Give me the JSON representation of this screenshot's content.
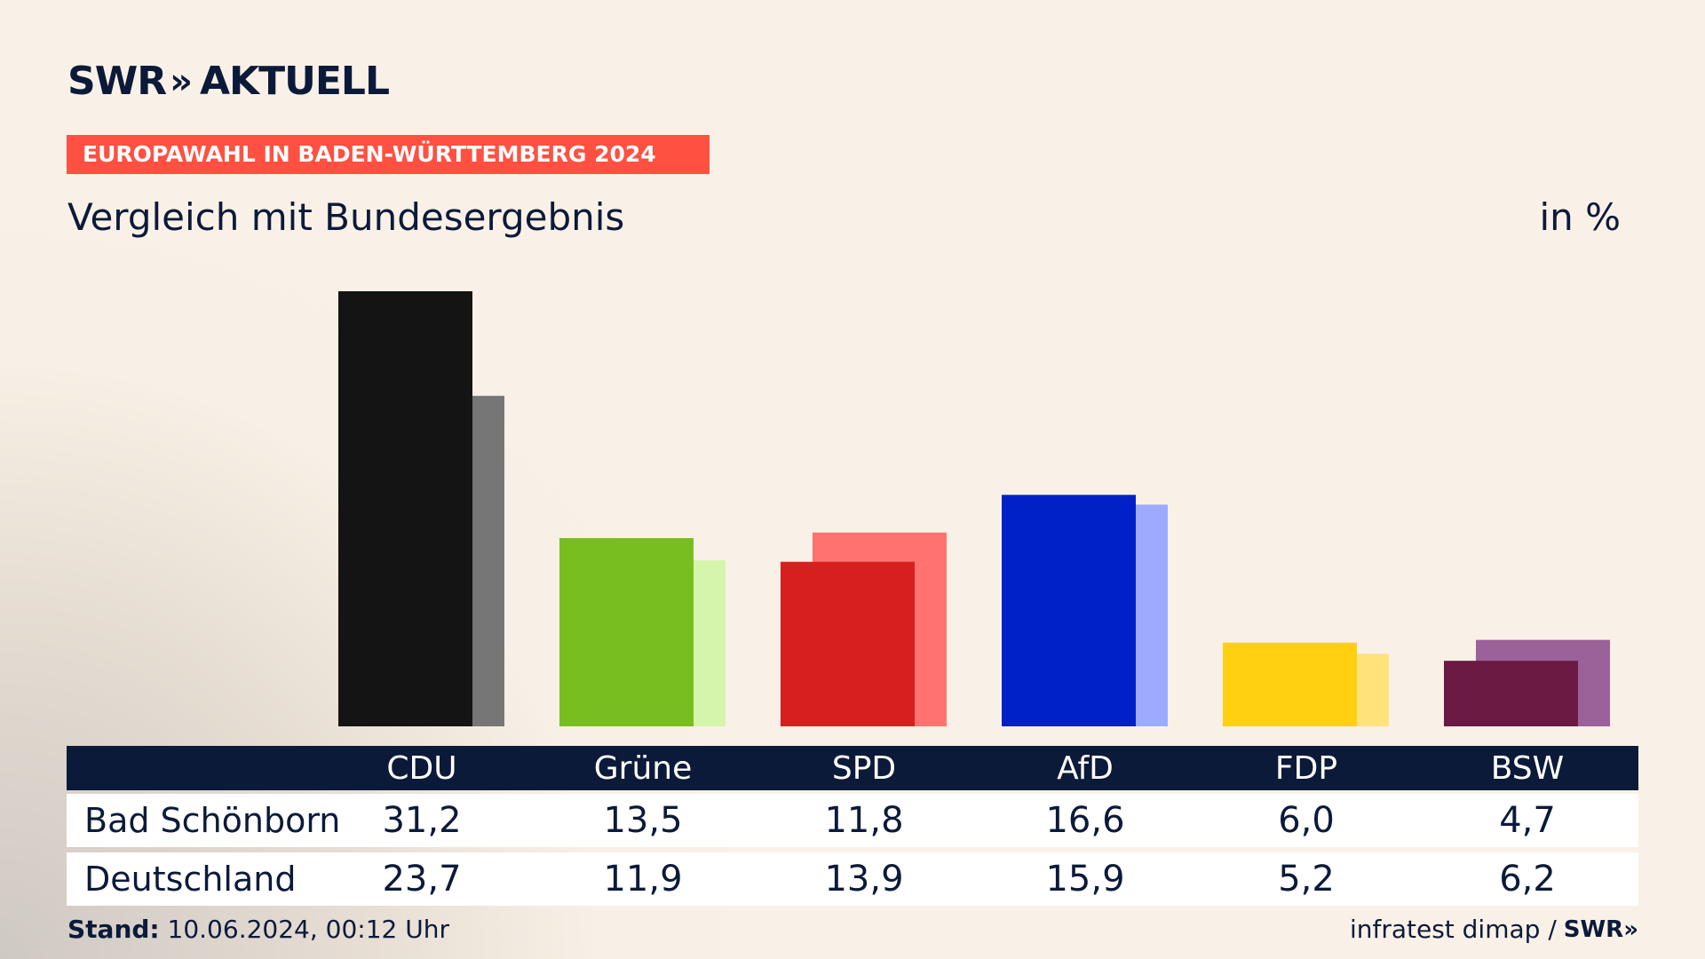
{
  "brand": {
    "swr": "SWR",
    "chevrons": "»",
    "aktuell": "AKTUELL"
  },
  "banner": "EUROPAWAHL IN BADEN-WÜRTTEMBERG 2024",
  "subtitle": "Vergleich mit Bundesergebnis",
  "unit": "in %",
  "table": {
    "headers": [
      "CDU",
      "Grüne",
      "SPD",
      "AfD",
      "FDP",
      "BSW"
    ],
    "rows": [
      {
        "label": "Bad Schönborn",
        "values": [
          "31,2",
          "13,5",
          "11,8",
          "16,6",
          "6,0",
          "4,7"
        ]
      },
      {
        "label": "Deutschland",
        "values": [
          "23,7",
          "11,9",
          "13,9",
          "15,9",
          "5,2",
          "6,2"
        ]
      }
    ]
  },
  "footer": {
    "stand_label": "Stand:",
    "stand_value": "10.06.2024, 00:12 Uhr",
    "source": "infratest dimap /",
    "logo": "SWR»"
  },
  "chart_data": {
    "type": "bar",
    "categories": [
      "CDU",
      "Grüne",
      "SPD",
      "AfD",
      "FDP",
      "BSW"
    ],
    "series": [
      {
        "name": "Bad Schönborn",
        "values": [
          31.2,
          13.5,
          11.8,
          16.6,
          6.0,
          4.7
        ],
        "colors": [
          "#141414",
          "#78be1e",
          "#d71f1f",
          "#0021c8",
          "#ffd010",
          "#6b1a43"
        ]
      },
      {
        "name": "Deutschland",
        "values": [
          23.7,
          11.9,
          13.9,
          15.9,
          5.2,
          6.2
        ],
        "colors": [
          "#767676",
          "#d5f5ab",
          "#ff7270",
          "#9dabff",
          "#ffe27a",
          "#9b6199"
        ]
      }
    ],
    "ylim": [
      0,
      31.2
    ],
    "grid": false,
    "legend": "table-below"
  }
}
